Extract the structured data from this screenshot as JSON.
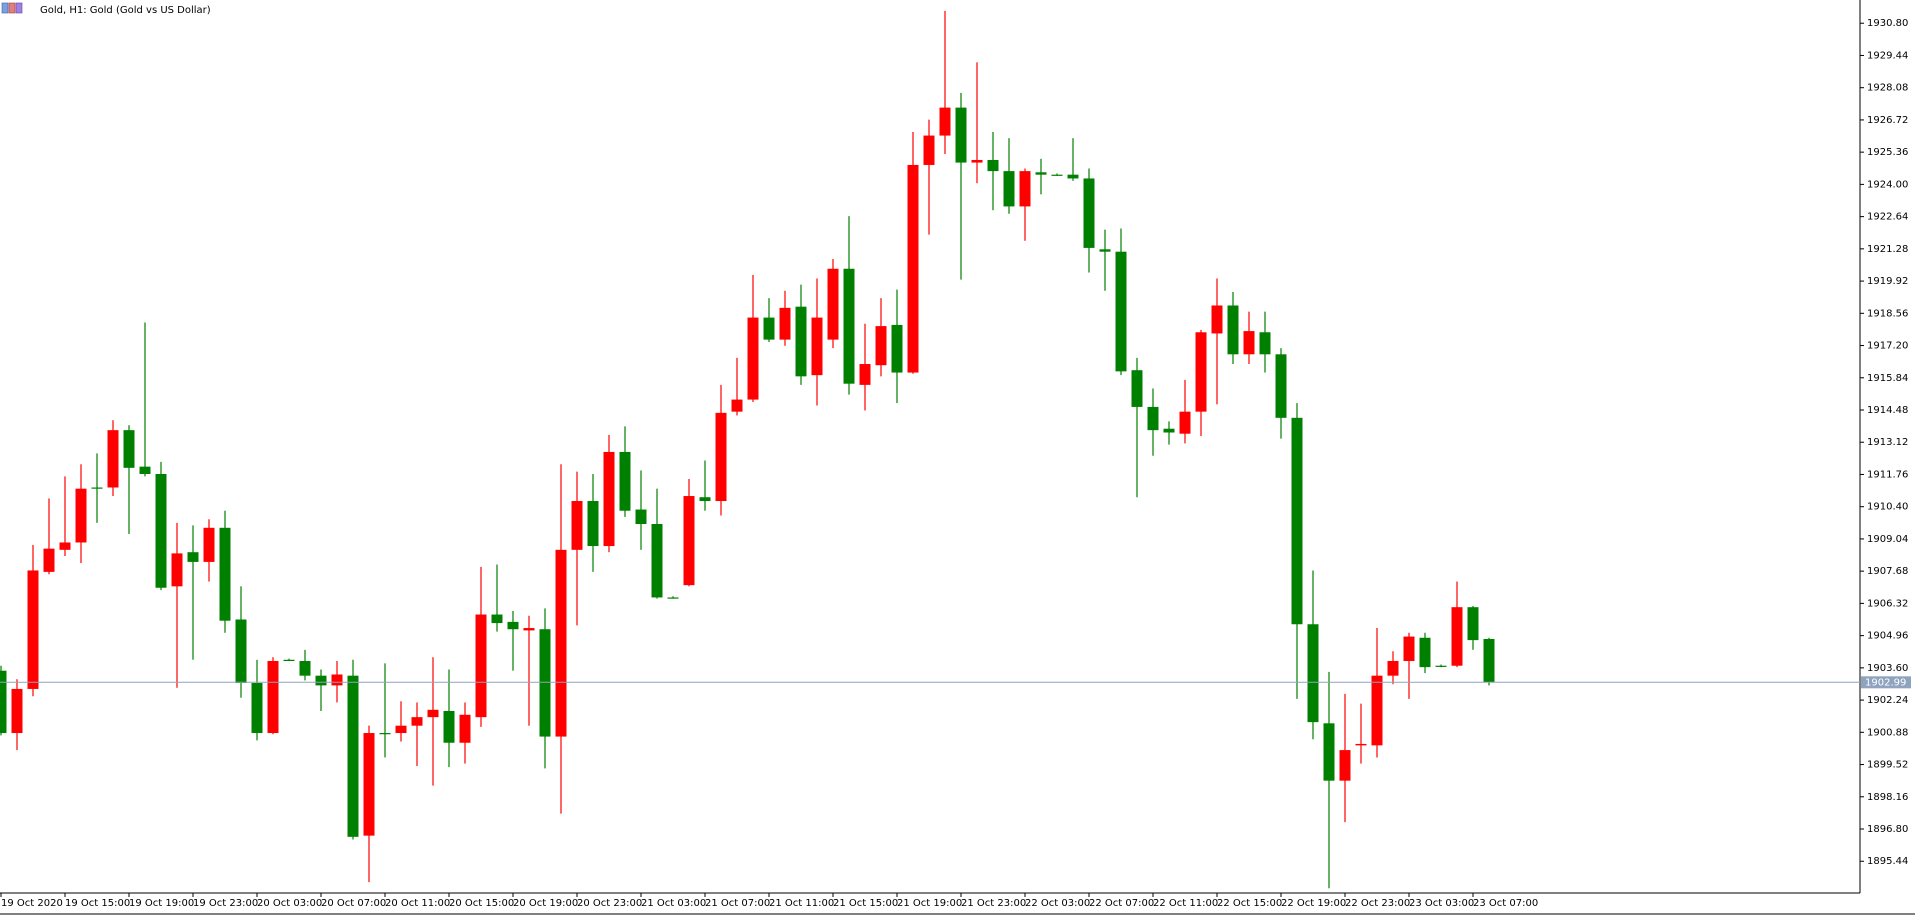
{
  "chart_data": {
    "type": "candlestick",
    "title": "Gold, H1:  Gold (Gold vs US Dollar)",
    "categories": [
      "19 Oct 2020",
      null,
      null,
      null,
      "19 Oct 15:00",
      null,
      null,
      null,
      "19 Oct 19:00",
      null,
      null,
      null,
      "19 Oct 23:00",
      null,
      null,
      null,
      "20 Oct 03:00",
      null,
      null,
      null,
      "20 Oct 07:00",
      null,
      null,
      null,
      "20 Oct 11:00",
      null,
      null,
      null,
      "20 Oct 15:00",
      null,
      null,
      null,
      "20 Oct 19:00",
      null,
      null,
      null,
      "20 Oct 23:00",
      null,
      null,
      null,
      "21 Oct 03:00",
      null,
      null,
      null,
      "21 Oct 07:00",
      null,
      null,
      null,
      "21 Oct 11:00",
      null,
      null,
      null,
      "21 Oct 15:00",
      null,
      null,
      null,
      "21 Oct 19:00",
      null,
      null,
      null,
      "21 Oct 23:00",
      null,
      null,
      null,
      "22 Oct 03:00",
      null,
      null,
      null,
      "22 Oct 07:00",
      null,
      null,
      null,
      "22 Oct 11:00",
      null,
      null,
      null,
      "22 Oct 15:00",
      null,
      null,
      null,
      "22 Oct 19:00",
      null,
      null,
      null,
      "22 Oct 23:00",
      null,
      null,
      null,
      "23 Oct 03:00",
      null,
      null,
      null,
      "23 Oct 07:00",
      null
    ],
    "open": [
      1903.48,
      1900.85,
      1902.71,
      1907.65,
      1908.58,
      1908.89,
      1911.21,
      1911.21,
      1913.63,
      1912.09,
      1911.78,
      1907.04,
      1908.48,
      1908.07,
      1909.51,
      1905.64,
      1902.96,
      1900.85,
      1903.94,
      1903.89,
      1903.27,
      1902.86,
      1903.27,
      1896.52,
      1900.85,
      1900.85,
      1901.16,
      1901.52,
      1901.78,
      1900.44,
      1901.52,
      1905.85,
      1905.54,
      1905.18,
      1905.23,
      1900.7,
      1908.58,
      1910.64,
      1908.74,
      1912.71,
      1910.28,
      1909.67,
      1906.57,
      1907.09,
      1910.8,
      1910.64,
      1914.41,
      1914.92,
      1918.38,
      1917.45,
      1918.84,
      1915.95,
      1917.45,
      1920.44,
      1915.54,
      1916.37,
      1918.07,
      1916.06,
      1924.82,
      1926.06,
      1927.24,
      1924.92,
      1925.03,
      1924.56,
      1923.07,
      1924.51,
      1924.41,
      1924.41,
      1924.25,
      1921.26,
      1921.16,
      1916.16,
      1914.61,
      1913.69,
      1913.48,
      1914.41,
      1917.71,
      1918.89,
      1916.83,
      1917.76,
      1916.83,
      1914.15,
      1905.44,
      1901.26,
      1898.84,
      1900.33,
      1900.33,
      1903.27,
      1903.89,
      1904.87,
      1903.69,
      1903.69,
      1906.16,
      1904.82
    ],
    "high": [
      1903.69,
      1903.12,
      1908.79,
      1910.75,
      1911.68,
      1912.19,
      1912.65,
      1914.05,
      1913.84,
      1918.17,
      1912.29,
      1909.72,
      1909.61,
      1909.87,
      1910.23,
      1907.04,
      1903.94,
      1904.05,
      1903.99,
      1904.36,
      1903.53,
      1903.89,
      1903.94,
      1901.16,
      1903.79,
      1902.19,
      1902.14,
      1904.05,
      1903.53,
      1902.14,
      1907.86,
      1907.96,
      1906.0,
      1905.8,
      1906.11,
      1912.19,
      1911.88,
      1911.78,
      1913.43,
      1913.79,
      1911.93,
      1911.16,
      1906.62,
      1911.57,
      1912.35,
      1915.54,
      1916.68,
      1920.18,
      1919.2,
      1919.51,
      1919.77,
      1920.03,
      1920.85,
      1922.66,
      1918.12,
      1919.2,
      1919.56,
      1926.21,
      1926.73,
      1931.32,
      1927.86,
      1929.15,
      1926.21,
      1925.95,
      1924.67,
      1925.08,
      1924.46,
      1925.95,
      1924.67,
      1922.09,
      1922.14,
      1916.68,
      1915.39,
      1914.0,
      1915.75,
      1917.86,
      1920.03,
      1919.46,
      1918.63,
      1918.63,
      1917.09,
      1914.77,
      1907.71,
      1903.43,
      1902.5,
      1902.09,
      1905.28,
      1904.3,
      1905.08,
      1905.08,
      1903.74,
      1907.24,
      1906.21,
      1904.87
    ],
    "low": [
      1900.75,
      1900.13,
      1902.4,
      1907.55,
      1908.32,
      1908.02,
      1909.72,
      1910.85,
      1909.25,
      1911.68,
      1906.88,
      1902.76,
      1903.94,
      1907.24,
      1905.08,
      1902.34,
      1900.54,
      1900.8,
      1903.89,
      1903.07,
      1901.78,
      1902.14,
      1896.36,
      1894.56,
      1899.82,
      1900.49,
      1899.46,
      1898.63,
      1899.41,
      1899.56,
      1901.11,
      1905.13,
      1903.48,
      1901.16,
      1899.36,
      1897.45,
      1905.39,
      1907.65,
      1908.48,
      1909.97,
      1908.58,
      1906.52,
      1906.52,
      1907.04,
      1910.23,
      1910.03,
      1914.25,
      1914.82,
      1917.35,
      1917.19,
      1915.54,
      1914.67,
      1917.09,
      1915.13,
      1914.46,
      1915.9,
      1914.77,
      1916.01,
      1921.88,
      1925.28,
      1919.98,
      1924.05,
      1922.91,
      1922.76,
      1921.62,
      1923.58,
      1924.36,
      1924.15,
      1920.28,
      1919.51,
      1915.95,
      1910.8,
      1912.55,
      1913.02,
      1913.07,
      1913.38,
      1914.72,
      1916.42,
      1916.42,
      1916.06,
      1913.27,
      1902.29,
      1900.59,
      1894.3,
      1897.09,
      1899.56,
      1899.82,
      1902.91,
      1902.29,
      1903.38,
      1903.63,
      1903.63,
      1904.36,
      1902.86
    ],
    "close": [
      1900.85,
      1902.71,
      1907.71,
      1908.63,
      1908.89,
      1911.16,
      1911.16,
      1913.63,
      1912.04,
      1911.78,
      1906.98,
      1908.43,
      1908.07,
      1909.51,
      1905.59,
      1902.96,
      1900.85,
      1903.89,
      1903.94,
      1903.27,
      1902.86,
      1903.32,
      1896.47,
      1900.85,
      1900.85,
      1901.16,
      1901.52,
      1901.83,
      1900.44,
      1901.62,
      1905.85,
      1905.49,
      1905.23,
      1905.28,
      1900.7,
      1908.58,
      1910.64,
      1908.74,
      1912.71,
      1910.23,
      1909.67,
      1906.57,
      1906.57,
      1910.85,
      1910.64,
      1914.36,
      1914.92,
      1918.38,
      1917.45,
      1918.79,
      1915.9,
      1918.38,
      1920.44,
      1915.59,
      1916.42,
      1918.02,
      1916.06,
      1924.82,
      1926.06,
      1927.24,
      1924.92,
      1925.03,
      1924.56,
      1923.07,
      1924.56,
      1924.41,
      1924.41,
      1924.25,
      1921.32,
      1921.16,
      1916.11,
      1914.61,
      1913.63,
      1913.53,
      1914.41,
      1917.76,
      1918.89,
      1916.83,
      1917.81,
      1916.83,
      1914.15,
      1905.44,
      1901.31,
      1898.84,
      1900.13,
      1900.39,
      1903.27,
      1903.89,
      1904.92,
      1903.63,
      1903.69,
      1906.16,
      1904.77,
      1902.99
    ],
    "up_color": "#ff0000",
    "down_color": "#008000",
    "current_price": 1902.99,
    "current_price_color": "#8fa3bf",
    "ylim": [
      1894.1,
      1931.78
    ],
    "yticks": [
      {
        "value": 1930.8,
        "label": "1930.80"
      },
      1929.44,
      1928.08,
      1926.72,
      1925.36,
      {
        "value": 1924.0,
        "label": "1924.00"
      },
      1922.64,
      1921.28,
      1919.92,
      1918.56,
      {
        "value": 1917.2,
        "label": "1917.20"
      },
      1915.84,
      1914.48,
      1913.12,
      1911.76,
      {
        "value": 1910.4,
        "label": "1910.40"
      },
      1909.04,
      1907.68,
      1906.32,
      1904.96,
      {
        "value": 1903.6,
        "label": "1903.60"
      },
      1902.24,
      1900.88,
      1899.52,
      1898.16,
      {
        "value": 1896.8,
        "label": "1896.80"
      },
      1895.44
    ]
  }
}
